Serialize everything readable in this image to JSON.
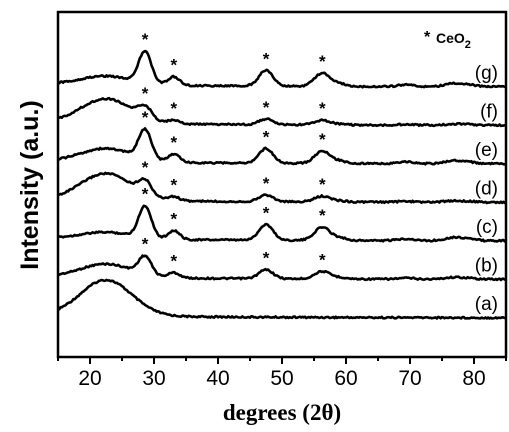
{
  "chart_data": {
    "type": "line",
    "title": "",
    "xlabel": "degrees (2θ)",
    "ylabel": "Intensity (a.u.)",
    "xlim": [
      15,
      85
    ],
    "xticks": [
      "20",
      "30",
      "40",
      "50",
      "60",
      "70",
      "80"
    ],
    "xtick_values": [
      20,
      30,
      40,
      50,
      60,
      70,
      80
    ],
    "y_ticks_shown": false,
    "legend": {
      "marker": "*",
      "text": "CeO",
      "subscript": "2",
      "placement": "top-right"
    },
    "marker_symbol": "*",
    "series": [
      {
        "name": "(a)",
        "offset": 0.0,
        "amorphous": 0.8,
        "ceria": 0.0,
        "peaks": []
      },
      {
        "name": "(b)",
        "offset": 1.0,
        "amorphous": 0.3,
        "ceria": 0.4,
        "peaks": [
          28.6,
          33.1,
          47.5,
          56.3
        ]
      },
      {
        "name": "(c)",
        "offset": 2.0,
        "amorphous": 0.15,
        "ceria": 0.7,
        "peaks": [
          28.6,
          33.1,
          47.5,
          56.3
        ]
      },
      {
        "name": "(d)",
        "offset": 3.0,
        "amorphous": 0.6,
        "ceria": 0.3,
        "peaks": [
          28.6,
          33.1,
          47.5,
          56.3
        ]
      },
      {
        "name": "(e)",
        "offset": 4.0,
        "amorphous": 0.3,
        "ceria": 0.65,
        "peaks": [
          28.6,
          33.1,
          47.5,
          56.3
        ]
      },
      {
        "name": "(f)",
        "offset": 5.0,
        "amorphous": 0.55,
        "ceria": 0.25,
        "peaks": [
          28.6,
          33.1,
          47.5,
          56.3
        ]
      },
      {
        "name": "(g)",
        "offset": 6.0,
        "amorphous": 0.2,
        "ceria": 0.7,
        "peaks": [
          28.6,
          33.1,
          47.5,
          56.3
        ]
      }
    ]
  }
}
